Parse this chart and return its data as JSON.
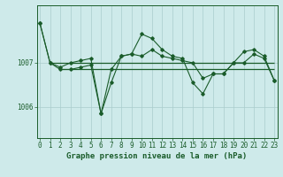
{
  "bg_color": "#ceeaea",
  "grid_color": "#aacccc",
  "line_color": "#1a5c2a",
  "xlabel": "Graphe pression niveau de la mer (hPa)",
  "xlabel_fontsize": 6.5,
  "tick_fontsize": 5.5,
  "ytick_values": [
    1006,
    1007
  ],
  "ytick_labels": [
    "1006",
    "1007"
  ],
  "ylim": [
    1005.3,
    1008.3
  ],
  "xlim": [
    -0.3,
    23.3
  ],
  "xtick_labels": [
    "0",
    "1",
    "2",
    "3",
    "4",
    "5",
    "6",
    "7",
    "8",
    "9",
    "10",
    "11",
    "12",
    "13",
    "14",
    "15",
    "16",
    "17",
    "18",
    "19",
    "20",
    "21",
    "22",
    "23"
  ],
  "series1_y": [
    1007.9,
    1007.0,
    1006.85,
    1006.85,
    1006.9,
    1006.95,
    1005.85,
    1006.85,
    1007.15,
    1007.2,
    1007.65,
    1007.55,
    1007.3,
    1007.15,
    1007.1,
    1006.55,
    1006.3,
    1006.75,
    1006.75,
    1007.0,
    1007.25,
    1007.3,
    1007.15,
    1006.6
  ],
  "series2_y": [
    1007.9,
    1007.0,
    1006.9,
    1007.0,
    1007.05,
    1007.1,
    1005.85,
    1006.55,
    1007.15,
    1007.2,
    1007.15,
    1007.3,
    1007.15,
    1007.1,
    1007.05,
    1007.0,
    1006.65,
    1006.75,
    1006.75,
    1007.0,
    1007.0,
    1007.2,
    1007.1,
    1006.6
  ],
  "hline1_y": 1006.85,
  "hline1_x0": 2,
  "hline1_x1": 23,
  "hline2_y": 1007.0,
  "hline2_x0": 1,
  "hline2_x1": 23
}
